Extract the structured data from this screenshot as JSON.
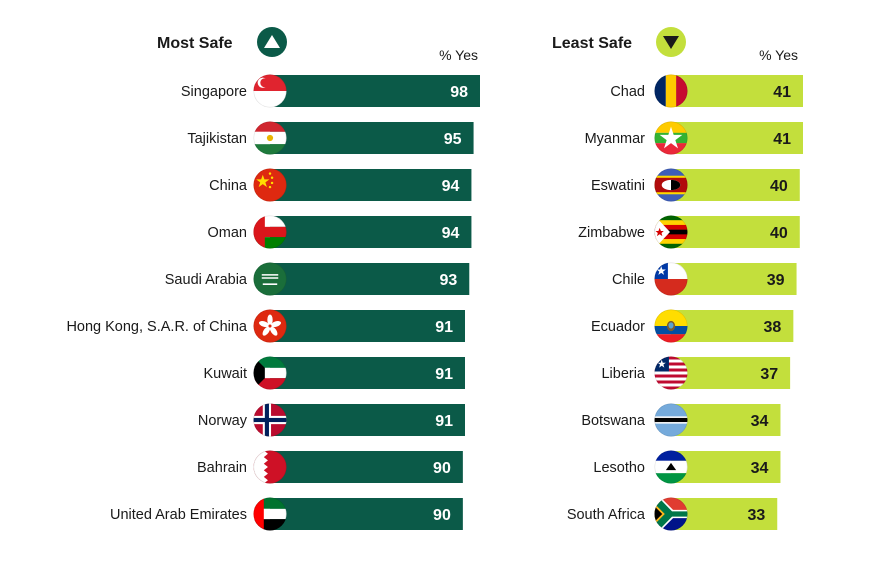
{
  "chart_data": [
    {
      "type": "bar",
      "orientation": "horizontal",
      "title": "Most Safe",
      "title_icon": "triangle-up-icon",
      "ylabel": "% Yes",
      "categories": [
        "Singapore",
        "Tajikistan",
        "China",
        "Oman",
        "Saudi Arabia",
        "Hong Kong, S.A.R. of China",
        "Kuwait",
        "Norway",
        "Bahrain",
        "United Arab Emirates"
      ],
      "values": [
        98,
        95,
        94,
        94,
        93,
        91,
        91,
        91,
        90,
        90
      ],
      "flags": [
        "singapore-flag-icon",
        "tajikistan-flag-icon",
        "china-flag-icon",
        "oman-flag-icon",
        "saudi-arabia-flag-icon",
        "hong-kong-flag-icon",
        "kuwait-flag-icon",
        "norway-flag-icon",
        "bahrain-flag-icon",
        "uae-flag-icon"
      ],
      "bar_color": "#0b5a48",
      "value_color": "#ffffff"
    },
    {
      "type": "bar",
      "orientation": "horizontal",
      "title": "Least Safe",
      "title_icon": "triangle-down-icon",
      "ylabel": "% Yes",
      "categories": [
        "Chad",
        "Myanmar",
        "Eswatini",
        "Zimbabwe",
        "Chile",
        "Ecuador",
        "Liberia",
        "Botswana",
        "Lesotho",
        "South Africa"
      ],
      "values": [
        41,
        41,
        40,
        40,
        39,
        38,
        37,
        34,
        34,
        33
      ],
      "flags": [
        "chad-flag-icon",
        "myanmar-flag-icon",
        "eswatini-flag-icon",
        "zimbabwe-flag-icon",
        "chile-flag-icon",
        "ecuador-flag-icon",
        "liberia-flag-icon",
        "botswana-flag-icon",
        "lesotho-flag-icon",
        "south-africa-flag-icon"
      ],
      "bar_color": "#c3df3c",
      "value_color": "#1a1a1a"
    }
  ]
}
